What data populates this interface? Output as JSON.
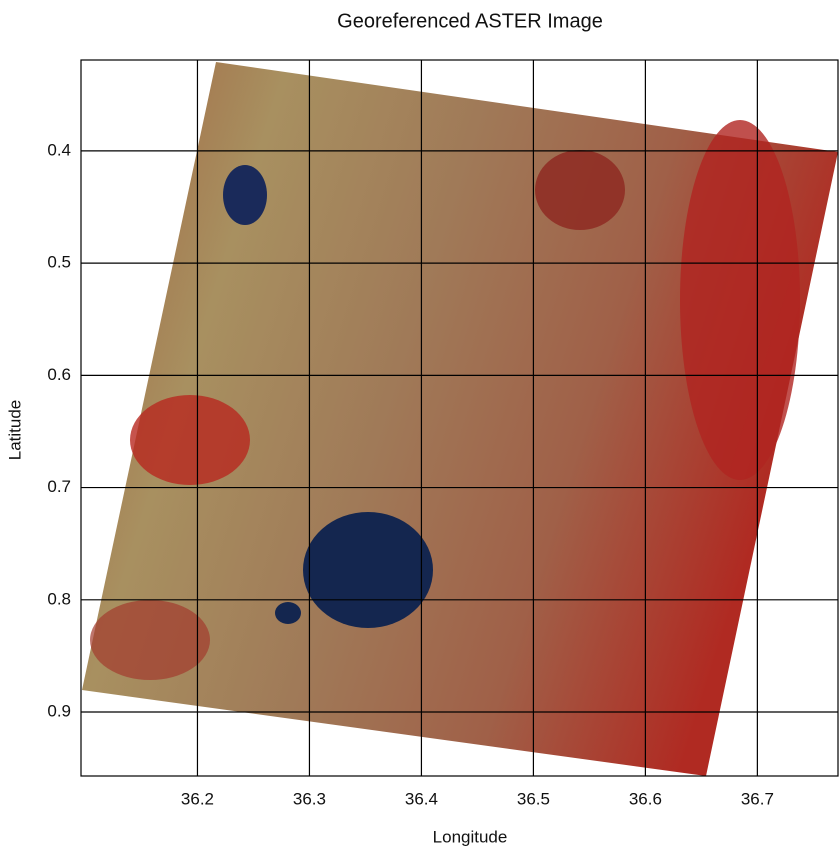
{
  "chart_data": {
    "type": "image",
    "title": "Georeferenced ASTER Image",
    "xlabel": "Longitude",
    "ylabel": "Latitude",
    "xlim": [
      36.096,
      36.772
    ],
    "ylim": [
      0.319,
      0.957
    ],
    "y_inverted": true,
    "xticks": [
      36.2,
      36.3,
      36.4,
      36.5,
      36.6,
      36.7
    ],
    "yticks": [
      0.4,
      0.5,
      0.6,
      0.7,
      0.8,
      0.9
    ],
    "grid": true,
    "grid_color": "#000000"
  }
}
